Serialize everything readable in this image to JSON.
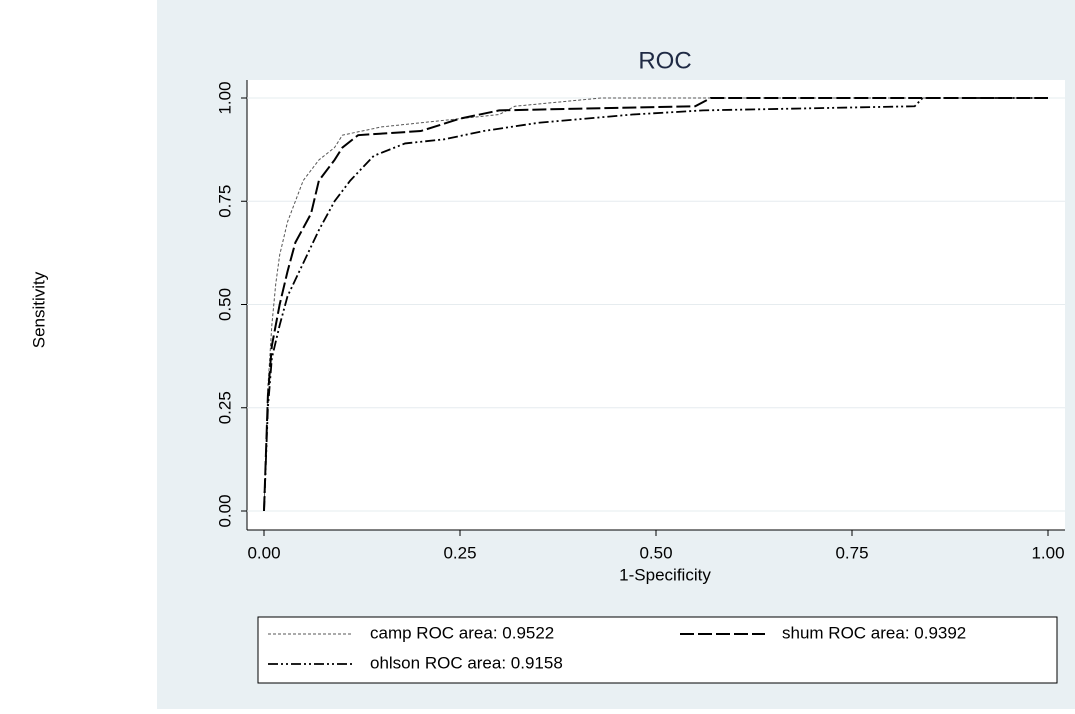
{
  "chart_data": {
    "type": "line",
    "title": "ROC",
    "x_label": "1-Specificity",
    "y_label": "Sensitivity",
    "xlim": [
      0,
      1
    ],
    "ylim": [
      0,
      1
    ],
    "xticks": [
      {
        "value": 0,
        "label": "0.00"
      },
      {
        "value": 0.25,
        "label": "0.25"
      },
      {
        "value": 0.5,
        "label": "0.50"
      },
      {
        "value": 0.75,
        "label": "0.75"
      },
      {
        "value": 1,
        "label": "1.00"
      }
    ],
    "yticks": [
      {
        "value": 0,
        "label": "0.00"
      },
      {
        "value": 0.25,
        "label": "0.25"
      },
      {
        "value": 0.5,
        "label": "0.50"
      },
      {
        "value": 0.75,
        "label": "0.75"
      },
      {
        "value": 1,
        "label": "1.00"
      }
    ],
    "grid": true,
    "series": [
      {
        "name": "camp ROC area: 0.9522",
        "color": "#555555",
        "dash": "dotted",
        "x": [
          0,
          0.005,
          0.01,
          0.015,
          0.02,
          0.03,
          0.04,
          0.05,
          0.07,
          0.09,
          0.1,
          0.15,
          0.3,
          0.32,
          0.43,
          1
        ],
        "values": [
          0,
          0.3,
          0.45,
          0.55,
          0.62,
          0.7,
          0.75,
          0.8,
          0.85,
          0.88,
          0.91,
          0.93,
          0.96,
          0.98,
          1,
          1
        ]
      },
      {
        "name": "shum ROC area: 0.9392",
        "color": "#000000",
        "dash": "dashed",
        "x": [
          0,
          0.005,
          0.01,
          0.02,
          0.03,
          0.04,
          0.06,
          0.07,
          0.09,
          0.1,
          0.12,
          0.2,
          0.25,
          0.3,
          0.55,
          0.57,
          1
        ],
        "values": [
          0,
          0.28,
          0.4,
          0.5,
          0.58,
          0.65,
          0.72,
          0.8,
          0.85,
          0.88,
          0.91,
          0.92,
          0.95,
          0.97,
          0.98,
          1,
          1
        ]
      },
      {
        "name": "ohlson ROC area: 0.9158",
        "color": "#000000",
        "dash": "dashdot",
        "x": [
          0,
          0.005,
          0.01,
          0.02,
          0.03,
          0.05,
          0.07,
          0.09,
          0.11,
          0.14,
          0.18,
          0.23,
          0.28,
          0.35,
          0.47,
          0.56,
          0.83,
          0.84,
          1
        ],
        "values": [
          0,
          0.25,
          0.37,
          0.45,
          0.52,
          0.6,
          0.68,
          0.75,
          0.8,
          0.86,
          0.89,
          0.9,
          0.92,
          0.94,
          0.96,
          0.97,
          0.98,
          1,
          1
        ]
      }
    ]
  }
}
